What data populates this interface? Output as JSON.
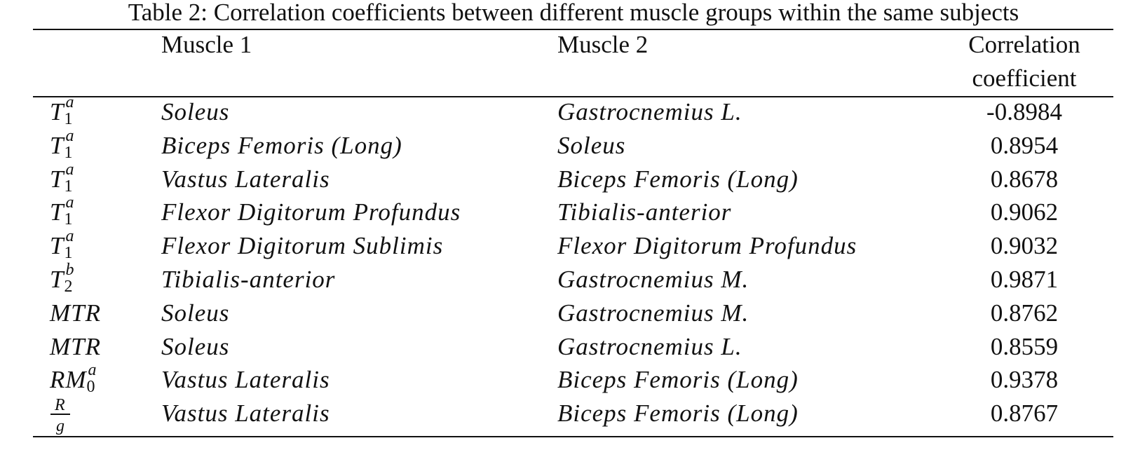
{
  "caption": "Table 2: Correlation coefficients between different muscle groups within the same subjects",
  "table": {
    "header": {
      "muscle1": "Muscle 1",
      "muscle2": "Muscle 2",
      "correlation": [
        "Correlation",
        "coefficient"
      ]
    },
    "rows": [
      {
        "param": {
          "base": "T",
          "sub": "1",
          "sup": "a"
        },
        "muscle1": "Soleus",
        "muscle2": "Gastrocnemius L.",
        "correlation": -0.8984
      },
      {
        "param": {
          "base": "T",
          "sub": "1",
          "sup": "a"
        },
        "muscle1": "Biceps Femoris (Long)",
        "muscle2": "Soleus",
        "correlation": 0.8954
      },
      {
        "param": {
          "base": "T",
          "sub": "1",
          "sup": "a"
        },
        "muscle1": "Vastus Lateralis",
        "muscle2": "Biceps Femoris (Long)",
        "correlation": 0.8678
      },
      {
        "param": {
          "base": "T",
          "sub": "1",
          "sup": "a"
        },
        "muscle1": "Flexor Digitorum Profundus",
        "muscle2": "Tibialis-anterior",
        "correlation": 0.9062
      },
      {
        "param": {
          "base": "T",
          "sub": "1",
          "sup": "a"
        },
        "muscle1": "Flexor Digitorum Sublimis",
        "muscle2": "Flexor Digitorum Profundus",
        "correlation": 0.9032
      },
      {
        "param": {
          "base": "T",
          "sub": "2",
          "sup": "b"
        },
        "muscle1": "Tibialis-anterior",
        "muscle2": "Gastrocnemius M.",
        "correlation": 0.9871
      },
      {
        "param": {
          "base": "MTR"
        },
        "muscle1": "Soleus",
        "muscle2": "Gastrocnemius M.",
        "correlation": 0.8762
      },
      {
        "param": {
          "base": "MTR"
        },
        "muscle1": "Soleus",
        "muscle2": "Gastrocnemius L.",
        "correlation": 0.8559
      },
      {
        "param": {
          "base": "RM",
          "sub": "0",
          "sup": "a"
        },
        "muscle1": "Vastus Lateralis",
        "muscle2": "Biceps Femoris (Long)",
        "correlation": 0.9378
      },
      {
        "param": {
          "num": "R",
          "den": "g"
        },
        "muscle1": "Vastus Lateralis",
        "muscle2": "Biceps Femoris (Long)",
        "correlation": 0.8767
      }
    ]
  }
}
